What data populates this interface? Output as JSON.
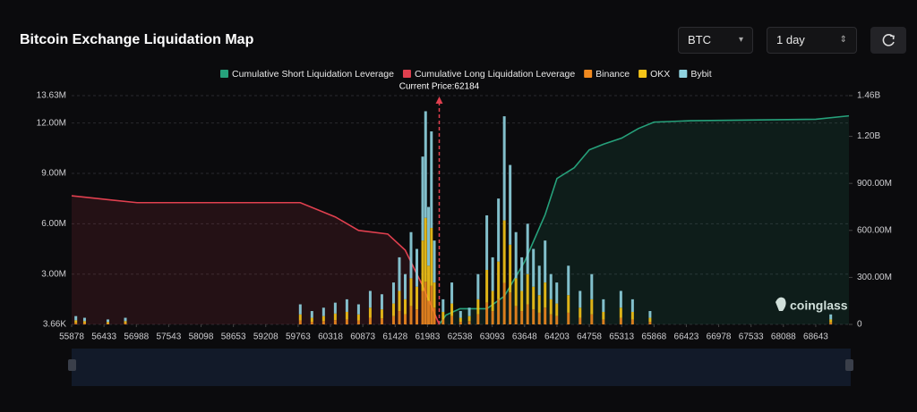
{
  "chart_data": {
    "type": "liquidation-map",
    "title": "Bitcoin Exchange Liquidation Map",
    "controls": {
      "symbol": "BTC",
      "period": "1 day"
    },
    "watermark": "coinglass",
    "annotation": {
      "value": 62184,
      "label": "Current Price:62184",
      "color": "#e0404f"
    },
    "xlim": [
      55878,
      69212
    ],
    "xticks": [
      55878,
      56433,
      56988,
      57543,
      58098,
      58653,
      59208,
      59763,
      60318,
      60873,
      61428,
      61983,
      62538,
      63093,
      63648,
      64203,
      64758,
      65313,
      65868,
      66423,
      66978,
      67533,
      68088,
      68643
    ],
    "ylim": [
      3660,
      13630000
    ],
    "yticks": [
      {
        "value": 3660,
        "label": "3.66K"
      },
      {
        "value": 3000000,
        "label": "3.00M"
      },
      {
        "value": 6000000,
        "label": "6.00M"
      },
      {
        "value": 9000000,
        "label": "9.00M"
      },
      {
        "value": 12000000,
        "label": "12.00M"
      },
      {
        "value": 13630000,
        "label": "13.63M"
      }
    ],
    "y2lim": [
      0,
      1460000000
    ],
    "y2ticks": [
      0,
      {
        "value": 300000000,
        "label": "300.00M"
      },
      {
        "value": 600000000,
        "label": "600.00M"
      },
      {
        "value": 900000000,
        "label": "900.00M"
      },
      {
        "value": 1200000000,
        "label": "1.20B"
      },
      {
        "value": 1460000000,
        "label": "1.46B"
      }
    ],
    "grid": true,
    "x": [
      55950,
      56100,
      56500,
      56800,
      59800,
      60000,
      60200,
      60400,
      60600,
      60800,
      61000,
      61200,
      61400,
      61500,
      61600,
      61700,
      61800,
      61900,
      61950,
      62000,
      62050,
      62100,
      62250,
      62400,
      62550,
      62700,
      62850,
      63000,
      63100,
      63200,
      63300,
      63400,
      63500,
      63600,
      63700,
      63800,
      63900,
      64000,
      64100,
      64200,
      64400,
      64600,
      64800,
      65000,
      65300,
      65500,
      65800,
      68900
    ],
    "series": [
      {
        "name": "Cumulative Short Liquidation Leverage",
        "color": "#26a17b",
        "axis": "y2",
        "kind": "area",
        "x": [
          62184,
          62300,
          62538,
          63000,
          63300,
          63648,
          64000,
          64203,
          64500,
          64758,
          65000,
          65313,
          65600,
          65868,
          66500,
          68643,
          69212
        ],
        "values": [
          0,
          60000000,
          100000000,
          100000000,
          180000000,
          400000000,
          700000000,
          931000000,
          1000000000,
          1114000000,
          1150000000,
          1189000000,
          1250000000,
          1291000000,
          1300000000,
          1309000000,
          1331000000
        ]
      },
      {
        "name": "Cumulative Long Liquidation Leverage",
        "color": "#e0404f",
        "axis": "y2",
        "kind": "area",
        "x": [
          55878,
          56400,
          57000,
          59800,
          60400,
          60800,
          61300,
          61600,
          61900,
          62184
        ],
        "values": [
          821000000,
          800000000,
          777000000,
          777000000,
          686000000,
          600000000,
          577000000,
          474000000,
          246000000,
          0
        ]
      },
      {
        "name": "Binance",
        "color": "#f0891f",
        "kind": "bar",
        "values": [
          100000,
          80000,
          60000,
          80000,
          240000,
          160000,
          200000,
          260000,
          300000,
          240000,
          400000,
          360000,
          500000,
          800000,
          600000,
          1100000,
          900000,
          2000000,
          2540000,
          1400000,
          2300000,
          1000000,
          300000,
          500000,
          160000,
          200000,
          600000,
          1300000,
          800000,
          1500000,
          2480000,
          1900000,
          1100000,
          800000,
          1200000,
          900000,
          700000,
          1000000,
          600000,
          500000,
          700000,
          400000,
          600000,
          300000,
          400000,
          300000,
          160000,
          120000
        ]
      },
      {
        "name": "OKX",
        "color": "#f5c518",
        "kind": "bar",
        "values": [
          150000,
          120000,
          90000,
          120000,
          360000,
          240000,
          300000,
          390000,
          450000,
          360000,
          600000,
          540000,
          750000,
          1200000,
          900000,
          1650000,
          1350000,
          3000000,
          3810000,
          2100000,
          3450000,
          1500000,
          450000,
          750000,
          240000,
          300000,
          900000,
          1950000,
          1200000,
          2250000,
          3720000,
          2850000,
          1650000,
          1200000,
          1800000,
          1350000,
          1050000,
          1500000,
          900000,
          750000,
          1050000,
          600000,
          900000,
          450000,
          600000,
          450000,
          240000,
          180000
        ]
      },
      {
        "name": "Bybit",
        "color": "#8fd3e0",
        "kind": "bar",
        "values": [
          250000,
          200000,
          150000,
          200000,
          600000,
          400000,
          500000,
          650000,
          750000,
          600000,
          1000000,
          900000,
          1250000,
          2000000,
          1500000,
          2750000,
          2250000,
          5000000,
          6350000,
          3500000,
          5750000,
          2500000,
          750000,
          1250000,
          400000,
          500000,
          1500000,
          3250000,
          2000000,
          3750000,
          6200000,
          4750000,
          2750000,
          2000000,
          3000000,
          2250000,
          1750000,
          2500000,
          1500000,
          1250000,
          1750000,
          1000000,
          1500000,
          750000,
          1000000,
          750000,
          400000,
          300000
        ]
      }
    ]
  }
}
